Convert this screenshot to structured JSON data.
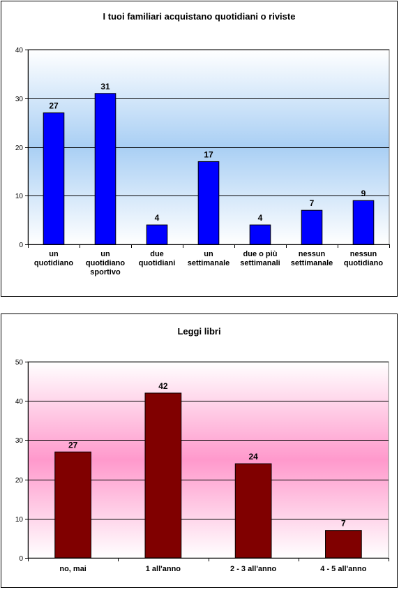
{
  "chart_data": [
    {
      "type": "bar",
      "title": "I tuoi familiari acquistano quotidiani o riviste",
      "categories": [
        [
          "un",
          "quotidiano"
        ],
        [
          "un",
          "quotidiano",
          "sportivo"
        ],
        [
          "due",
          "quotidiani"
        ],
        [
          "un",
          "settimanale"
        ],
        [
          "due o più",
          "settimanali"
        ],
        [
          "nessun",
          "settimanale"
        ],
        [
          "nessun",
          "quotidiano"
        ]
      ],
      "values": [
        27,
        31,
        4,
        17,
        4,
        7,
        9
      ],
      "ylim": [
        0,
        40
      ],
      "yticks": [
        0,
        10,
        20,
        30,
        40
      ],
      "grid": true,
      "colors": {
        "bar": "#0000FF",
        "bar_stroke": "#000000",
        "plot_gradient": [
          "#FFFFFF",
          "#A9CFF4"
        ]
      }
    },
    {
      "type": "bar",
      "title": "Leggi libri",
      "categories": [
        [
          "no, mai"
        ],
        [
          "1 all'anno"
        ],
        [
          "2 - 3 all'anno"
        ],
        [
          "4 - 5 all'anno"
        ]
      ],
      "values": [
        27,
        42,
        24,
        7
      ],
      "ylim": [
        0,
        50
      ],
      "yticks": [
        0,
        10,
        20,
        30,
        40,
        50
      ],
      "grid": true,
      "colors": {
        "bar": "#800000",
        "bar_stroke": "#000000",
        "plot_gradient": [
          "#FFFFFF",
          "#FF99CC"
        ]
      }
    }
  ]
}
